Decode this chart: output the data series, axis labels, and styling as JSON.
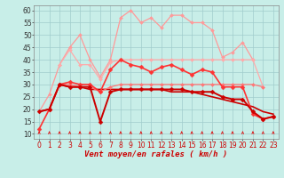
{
  "x": [
    0,
    1,
    2,
    3,
    4,
    5,
    6,
    7,
    8,
    9,
    10,
    11,
    12,
    13,
    14,
    15,
    16,
    17,
    18,
    19,
    20,
    21,
    22,
    23
  ],
  "lines": [
    {
      "color": "#FF9999",
      "lw": 0.9,
      "marker": "D",
      "markersize": 2.0,
      "values": [
        19,
        26,
        38,
        45,
        50,
        40,
        33,
        40,
        57,
        60,
        55,
        57,
        53,
        58,
        58,
        55,
        55,
        52,
        41,
        43,
        47,
        40,
        null,
        null
      ]
    },
    {
      "color": "#FFAAAA",
      "lw": 0.9,
      "marker": "D",
      "markersize": 2.0,
      "values": [
        null,
        null,
        38,
        44,
        38,
        38,
        32,
        39,
        40,
        40,
        40,
        40,
        40,
        40,
        40,
        40,
        40,
        40,
        40,
        40,
        40,
        40,
        29,
        null
      ]
    },
    {
      "color": "#FF7777",
      "lw": 0.9,
      "marker": "D",
      "markersize": 2.0,
      "values": [
        null,
        null,
        30,
        30,
        29,
        29,
        27,
        29,
        30,
        30,
        30,
        30,
        30,
        30,
        30,
        30,
        30,
        30,
        30,
        30,
        30,
        30,
        29,
        null
      ]
    },
    {
      "color": "#FF3333",
      "lw": 1.2,
      "marker": "D",
      "markersize": 2.5,
      "values": [
        12,
        20,
        30,
        31,
        30,
        30,
        27,
        36,
        40,
        38,
        37,
        35,
        37,
        38,
        36,
        34,
        36,
        35,
        29,
        29,
        29,
        18,
        16,
        17
      ]
    },
    {
      "color": "#CC0000",
      "lw": 1.4,
      "marker": "D",
      "markersize": 2.5,
      "values": [
        19,
        20,
        30,
        29,
        29,
        29,
        15,
        27,
        28,
        28,
        28,
        28,
        28,
        28,
        28,
        27,
        27,
        27,
        25,
        24,
        24,
        19,
        16,
        17
      ]
    },
    {
      "color": "#CC0000",
      "lw": 1.2,
      "marker": null,
      "markersize": 0,
      "values": [
        19,
        20,
        30,
        29,
        29,
        28,
        28,
        28,
        28,
        28,
        28,
        28,
        28,
        27,
        27,
        27,
        26,
        25,
        24,
        23,
        22,
        21,
        19,
        18
      ]
    }
  ],
  "ylim": [
    8,
    62
  ],
  "yticks": [
    10,
    15,
    20,
    25,
    30,
    35,
    40,
    45,
    50,
    55,
    60
  ],
  "xlim": [
    -0.5,
    23.5
  ],
  "xticks": [
    0,
    1,
    2,
    3,
    4,
    5,
    6,
    7,
    8,
    9,
    10,
    11,
    12,
    13,
    14,
    15,
    16,
    17,
    18,
    19,
    20,
    21,
    22,
    23
  ],
  "xlabel": "Vent moyen/en rafales ( km/h )",
  "bg_color": "#C8EEE8",
  "grid_color": "#A0CCCC",
  "arrow_color": "#DD2222",
  "xlabel_fontsize": 6.5,
  "tick_fontsize": 5.5
}
